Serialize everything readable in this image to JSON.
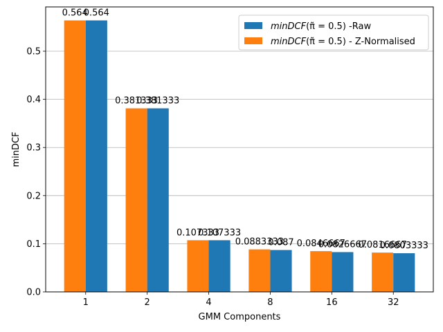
{
  "chart_data": {
    "type": "bar",
    "xlabel": "GMM Components",
    "ylabel": "minDCF",
    "categories": [
      "1",
      "2",
      "4",
      "8",
      "16",
      "32"
    ],
    "ylim": [
      0,
      0.592
    ],
    "yticks": [
      "0.0",
      "0.1",
      "0.2",
      "0.3",
      "0.4",
      "0.5"
    ],
    "grid": "y",
    "legend_position": "top-right",
    "series": [
      {
        "name_prefix": "minDCF",
        "name_math": "(π̃ = 0.5)",
        "name_suffix": " - Z-Normalised",
        "color": "#ff7f0e",
        "values": [
          0.564,
          0.381333,
          0.107333,
          0.0883333,
          0.0846667,
          0.0816667
        ],
        "labels": [
          "0.564",
          "0.381333",
          "0.107333",
          "0.0883333",
          "0.0846667",
          "0.0816667"
        ]
      },
      {
        "name_prefix": "minDCF",
        "name_math": "(π̃ = 0.5)",
        "name_suffix": " -Raw",
        "color": "#1f77b4",
        "values": [
          0.564,
          0.381333,
          0.107333,
          0.087,
          0.0826667,
          0.0803333
        ],
        "labels": [
          "0.564",
          "0.381333",
          "0.107333",
          "0.087",
          "0.0826667",
          "0.0803333"
        ]
      }
    ],
    "legend_order": [
      1,
      0
    ]
  }
}
